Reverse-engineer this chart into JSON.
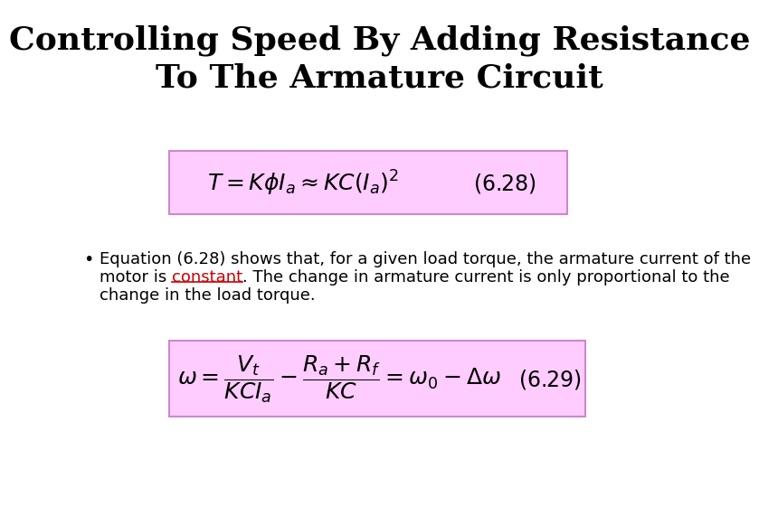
{
  "title_line1": "Controlling Speed By Adding Resistance",
  "title_line2": "To The Armature Circuit",
  "title_fontsize": 26,
  "title_fontweight": "bold",
  "eq1_main": "$T = K\\phi I_a \\approx KC(I_a)^2$",
  "eq1_number": "$(6.28)$",
  "eq2_main": "$\\omega = \\dfrac{V_t}{KCI_a} - \\dfrac{R_a + R_f}{KC} = \\omega_0 - \\Delta\\omega$",
  "eq2_number": "$(6.29)$",
  "bullet_line1": "Equation (6.28) shows that, for a given load torque, the armature current of the",
  "bullet_line2a": "motor is ",
  "bullet_constant": "constant",
  "bullet_line2b": ". The change in armature current is only proportional to the",
  "bullet_line3": "change in the load torque.",
  "bullet_fontsize": 13,
  "eq_box_facecolor": "#ffccff",
  "eq_box_edgecolor": "#cc88cc",
  "background_color": "#ffffff",
  "text_color": "#000000",
  "constant_color": "#cc0000",
  "eq_fontsize": 18,
  "eq_num_fontsize": 17
}
